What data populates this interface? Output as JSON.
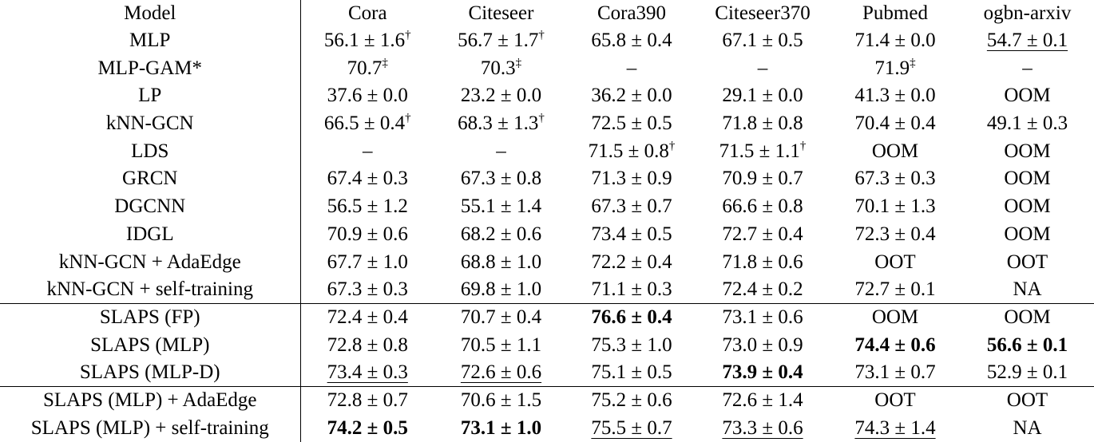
{
  "header": {
    "model": "Model",
    "columns": [
      "Cora",
      "Citeseer",
      "Cora390",
      "Citeseer370",
      "Pubmed",
      "ogbn-arxiv"
    ]
  },
  "rows": [
    {
      "model": "MLP",
      "group_start": false,
      "cells": [
        {
          "text": "56.1 ± 1.6",
          "sup": "†"
        },
        {
          "text": "56.7 ± 1.7",
          "sup": "†"
        },
        {
          "text": "65.8 ± 0.4"
        },
        {
          "text": "67.1 ± 0.5"
        },
        {
          "text": "71.4 ± 0.0"
        },
        {
          "text": "54.7 ± 0.1",
          "underline": true
        }
      ]
    },
    {
      "model": "MLP-GAM*",
      "group_start": false,
      "cells": [
        {
          "text": "70.7",
          "sup": "‡"
        },
        {
          "text": "70.3",
          "sup": "‡"
        },
        {
          "text": "–"
        },
        {
          "text": "–"
        },
        {
          "text": "71.9",
          "sup": "‡"
        },
        {
          "text": "–"
        }
      ]
    },
    {
      "model": "LP",
      "group_start": false,
      "cells": [
        {
          "text": "37.6 ± 0.0"
        },
        {
          "text": "23.2 ± 0.0"
        },
        {
          "text": "36.2 ± 0.0"
        },
        {
          "text": "29.1 ± 0.0"
        },
        {
          "text": "41.3 ± 0.0"
        },
        {
          "text": "OOM"
        }
      ]
    },
    {
      "model": "kNN-GCN",
      "group_start": false,
      "cells": [
        {
          "text": "66.5 ± 0.4",
          "sup": "†"
        },
        {
          "text": "68.3 ± 1.3",
          "sup": "†"
        },
        {
          "text": "72.5 ± 0.5"
        },
        {
          "text": "71.8 ± 0.8"
        },
        {
          "text": "70.4 ± 0.4"
        },
        {
          "text": "49.1 ± 0.3"
        }
      ]
    },
    {
      "model": "LDS",
      "group_start": false,
      "cells": [
        {
          "text": "–"
        },
        {
          "text": "–"
        },
        {
          "text": "71.5 ± 0.8",
          "sup": "†"
        },
        {
          "text": "71.5 ± 1.1",
          "sup": "†"
        },
        {
          "text": "OOM"
        },
        {
          "text": "OOM"
        }
      ]
    },
    {
      "model": "GRCN",
      "group_start": false,
      "cells": [
        {
          "text": "67.4 ± 0.3"
        },
        {
          "text": "67.3 ± 0.8"
        },
        {
          "text": "71.3 ± 0.9"
        },
        {
          "text": "70.9 ± 0.7"
        },
        {
          "text": "67.3 ± 0.3"
        },
        {
          "text": "OOM"
        }
      ]
    },
    {
      "model": "DGCNN",
      "group_start": false,
      "cells": [
        {
          "text": "56.5 ± 1.2"
        },
        {
          "text": "55.1 ± 1.4"
        },
        {
          "text": "67.3 ± 0.7"
        },
        {
          "text": "66.6 ± 0.8"
        },
        {
          "text": "70.1 ± 1.3"
        },
        {
          "text": "OOM"
        }
      ]
    },
    {
      "model": "IDGL",
      "group_start": false,
      "cells": [
        {
          "text": "70.9 ± 0.6"
        },
        {
          "text": "68.2 ± 0.6"
        },
        {
          "text": "73.4 ± 0.5"
        },
        {
          "text": "72.7 ± 0.4"
        },
        {
          "text": "72.3 ± 0.4"
        },
        {
          "text": "OOM"
        }
      ]
    },
    {
      "model": "kNN-GCN + AdaEdge",
      "group_start": false,
      "cells": [
        {
          "text": "67.7 ± 1.0"
        },
        {
          "text": "68.8 ± 1.0"
        },
        {
          "text": "72.2 ± 0.4"
        },
        {
          "text": "71.8 ± 0.6"
        },
        {
          "text": "OOT"
        },
        {
          "text": "OOT"
        }
      ]
    },
    {
      "model": "kNN-GCN + self-training",
      "group_start": false,
      "cells": [
        {
          "text": "67.3 ± 0.3"
        },
        {
          "text": "69.8 ± 1.0"
        },
        {
          "text": "71.1 ± 0.3"
        },
        {
          "text": "72.4 ± 0.2"
        },
        {
          "text": "72.7 ± 0.1"
        },
        {
          "text": "NA"
        }
      ]
    },
    {
      "model": "SLAPS (FP)",
      "group_start": true,
      "cells": [
        {
          "text": "72.4 ± 0.4"
        },
        {
          "text": "70.7 ± 0.4"
        },
        {
          "text": "76.6 ± 0.4",
          "bold": true
        },
        {
          "text": "73.1 ± 0.6"
        },
        {
          "text": "OOM"
        },
        {
          "text": "OOM"
        }
      ]
    },
    {
      "model": "SLAPS (MLP)",
      "group_start": false,
      "cells": [
        {
          "text": "72.8 ± 0.8"
        },
        {
          "text": "70.5 ± 1.1"
        },
        {
          "text": "75.3 ± 1.0"
        },
        {
          "text": "73.0 ± 0.9"
        },
        {
          "text": "74.4 ± 0.6",
          "bold": true
        },
        {
          "text": "56.6 ± 0.1",
          "bold": true
        }
      ]
    },
    {
      "model": "SLAPS (MLP-D)",
      "group_start": false,
      "cells": [
        {
          "text": "73.4 ± 0.3",
          "underline": true
        },
        {
          "text": "72.6 ± 0.6",
          "underline": true
        },
        {
          "text": "75.1 ± 0.5"
        },
        {
          "text": "73.9 ± 0.4",
          "bold": true
        },
        {
          "text": "73.1 ± 0.7"
        },
        {
          "text": "52.9 ± 0.1"
        }
      ]
    },
    {
      "model": "SLAPS (MLP) + AdaEdge",
      "group_start": true,
      "cells": [
        {
          "text": "72.8 ± 0.7"
        },
        {
          "text": "70.6 ± 1.5"
        },
        {
          "text": "75.2 ± 0.6"
        },
        {
          "text": "72.6 ± 1.4"
        },
        {
          "text": "OOT"
        },
        {
          "text": "OOT"
        }
      ]
    },
    {
      "model": "SLAPS (MLP) + self-training",
      "group_start": false,
      "cells": [
        {
          "text": "74.2 ± 0.5",
          "bold": true
        },
        {
          "text": "73.1 ± 1.0",
          "bold": true
        },
        {
          "text": "75.5 ± 0.7",
          "underline": true
        },
        {
          "text": "73.3 ± 0.6",
          "underline": true
        },
        {
          "text": "74.3 ± 1.4",
          "underline": true
        },
        {
          "text": "NA"
        }
      ]
    }
  ]
}
